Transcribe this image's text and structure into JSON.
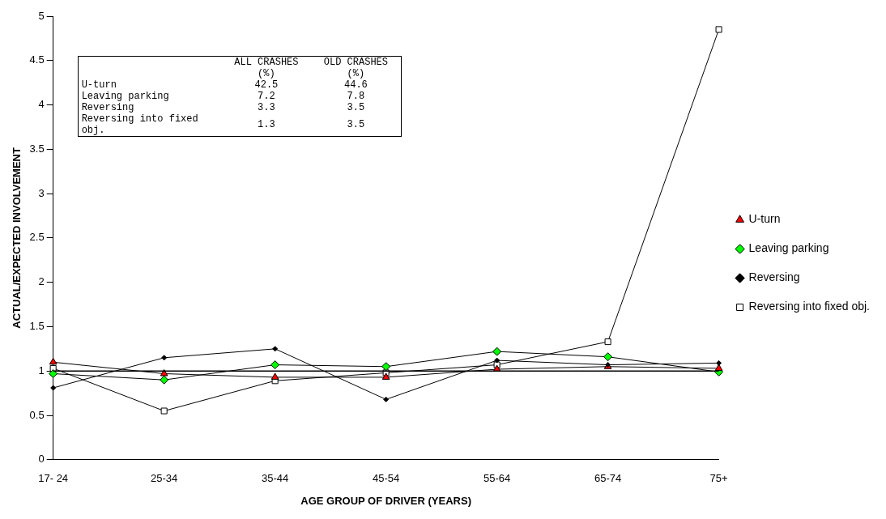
{
  "chart_data": {
    "type": "line",
    "xlabel": "AGE GROUP OF DRIVER (YEARS)",
    "ylabel": "ACTUAL/EXPECTED INVOLVEMENT",
    "categories": [
      "17- 24",
      "25-34",
      "35-44",
      "45-54",
      "55-64",
      "65-74",
      "75+"
    ],
    "series": [
      {
        "name": "U-turn",
        "color": "#ff0000",
        "marker": "triangle",
        "values": [
          1.1,
          0.97,
          0.93,
          0.93,
          1.02,
          1.05,
          1.03
        ]
      },
      {
        "name": "Leaving parking",
        "color": "#00ff00",
        "marker": "diamond",
        "values": [
          0.97,
          0.9,
          1.07,
          1.05,
          1.22,
          1.16,
          0.99
        ]
      },
      {
        "name": "Reversing",
        "color": "#000000",
        "marker": "diamond",
        "values": [
          0.81,
          1.15,
          1.25,
          0.68,
          1.12,
          1.07,
          1.09
        ]
      },
      {
        "name": "Reversing into fixed obj.",
        "color": "#ffffff",
        "marker": "square",
        "values": [
          1.03,
          0.55,
          0.89,
          0.98,
          1.07,
          1.33,
          4.85
        ]
      }
    ],
    "ylim": [
      0,
      5
    ],
    "yticks": [
      0,
      0.5,
      1,
      1.5,
      2,
      2.5,
      3,
      3.5,
      4,
      4.5,
      5
    ],
    "ref_lines": [
      {
        "axis": "y",
        "value": 1,
        "color": "#000000"
      }
    ],
    "annotations": [
      "ALL CRASHES (%)",
      "OLD CRASHES (%)",
      "U-turn",
      "42.5",
      "44.6",
      "Leaving parking",
      "7.2",
      "7.8",
      "Reversing",
      "3.3",
      "3.5",
      "Reversing into fixed obj.",
      "1.3",
      "3.5"
    ],
    "grid": false,
    "legend": "right",
    "line_style": "solid"
  }
}
